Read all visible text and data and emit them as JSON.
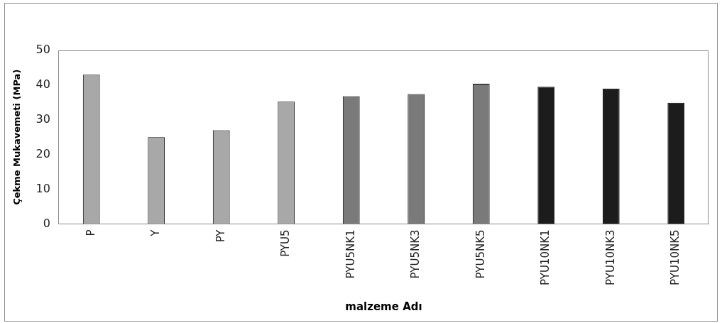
{
  "chart_data": {
    "type": "bar",
    "xlabel": "malzeme Adı",
    "ylabel": "Çekme Mukavemeti (MPa)",
    "categories": [
      "P",
      "Y",
      "PY",
      "PYU5",
      "PYU5NK1",
      "PYU5NK3",
      "PYU5NK5",
      "PYU10NK1",
      "PYU10NK3",
      "PYU10NK5"
    ],
    "values": [
      43.0,
      25.0,
      27.0,
      35.2,
      36.8,
      37.4,
      40.4,
      39.5,
      39.0,
      34.9
    ],
    "colors": [
      "#a8a8a8",
      "#a8a8a8",
      "#a8a8a8",
      "#a8a8a8",
      "#7a7a7a",
      "#7a7a7a",
      "#7a7a7a",
      "#1c1c1c",
      "#1c1c1c",
      "#1c1c1c"
    ],
    "ylim": [
      0,
      50
    ],
    "yticks": [
      0,
      10,
      20,
      30,
      40,
      50
    ],
    "grid": false,
    "legend": false
  }
}
